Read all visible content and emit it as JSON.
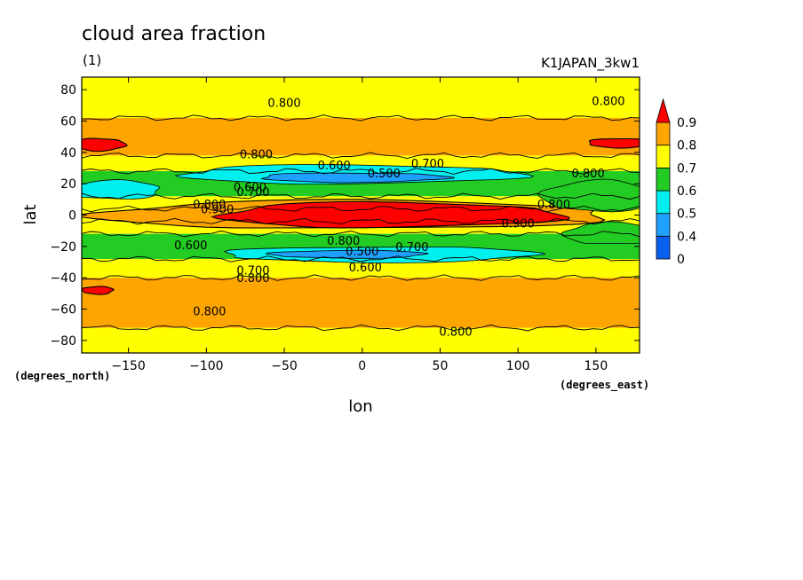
{
  "chart_data": {
    "type": "heatmap",
    "title": "cloud area fraction",
    "subtitle": "(1)",
    "model": "K1JAPAN_3kw1",
    "xlabel": "lon",
    "ylabel": "lat",
    "x_unit": "(degrees_east)",
    "y_unit": "(degrees_north)",
    "xlim": [
      -180,
      178
    ],
    "ylim": [
      -88,
      88
    ],
    "x_ticks": [
      -150,
      -100,
      -50,
      0,
      50,
      100,
      150
    ],
    "y_ticks": [
      -80,
      -60,
      -40,
      -20,
      0,
      20,
      40,
      60,
      80
    ],
    "colorbar": {
      "levels": [
        0,
        0.4,
        0.5,
        0.6,
        0.7,
        0.8,
        0.9
      ],
      "labels": [
        "0",
        "0.4",
        "0.5",
        "0.6",
        "0.7",
        "0.8",
        "0.9"
      ],
      "colors": [
        "#0a5ff0",
        "#1fa0ff",
        "#00f0f0",
        "#22cc22",
        "#ffff00",
        "#ffa500",
        "#ff0000"
      ]
    },
    "bands": [
      {
        "lat_min": 62,
        "lat_max": 88,
        "level": 0.7
      },
      {
        "lat_min": 38,
        "lat_max": 62,
        "level": 0.8
      },
      {
        "lat_min": 28,
        "lat_max": 38,
        "level": 0.7
      },
      {
        "lat_min": 12,
        "lat_max": 28,
        "level": 0.6
      },
      {
        "lat_min": 4,
        "lat_max": 12,
        "level": 0.7
      },
      {
        "lat_min": -4,
        "lat_max": 4,
        "level": 0.7
      },
      {
        "lat_min": -12,
        "lat_max": -4,
        "level": 0.7
      },
      {
        "lat_min": -28,
        "lat_max": -12,
        "level": 0.6
      },
      {
        "lat_min": -40,
        "lat_max": -28,
        "level": 0.7
      },
      {
        "lat_min": -72,
        "lat_max": -40,
        "level": 0.8
      },
      {
        "lat_min": -88,
        "lat_max": -72,
        "level": 0.7
      }
    ],
    "regions": [
      {
        "lon_c": -5,
        "lat_c": 26,
        "rlon": 110,
        "rlat": 6,
        "level": 0.5
      },
      {
        "lon_c": -5,
        "lat_c": 24,
        "rlon": 60,
        "rlat": 3,
        "level": 0.4
      },
      {
        "lon_c": 10,
        "lat_c": -25,
        "rlon": 100,
        "rlat": 5,
        "level": 0.5
      },
      {
        "lon_c": -10,
        "lat_c": -25,
        "rlon": 50,
        "rlat": 2.5,
        "level": 0.4
      },
      {
        "lon_c": -160,
        "lat_c": 16,
        "rlon": 30,
        "rlat": 6,
        "level": 0.5
      },
      {
        "lon_c": -5,
        "lat_c": 0,
        "rlon": 165,
        "rlat": 9,
        "level": 0.8
      },
      {
        "lon_c": 20,
        "lat_c": 0,
        "rlon": 110,
        "rlat": 8,
        "level": 0.9
      },
      {
        "lon_c": -168,
        "lat_c": 45,
        "rlon": 16,
        "rlat": 4,
        "level": 0.9
      },
      {
        "lon_c": 165,
        "lat_c": 46,
        "rlon": 20,
        "rlat": 3,
        "level": 0.9
      },
      {
        "lon_c": -170,
        "lat_c": -48,
        "rlon": 10,
        "rlat": 2.5,
        "level": 0.9
      },
      {
        "lon_c": 150,
        "lat_c": 12,
        "rlon": 35,
        "rlat": 10,
        "level": 0.6
      },
      {
        "lon_c": 160,
        "lat_c": -12,
        "rlon": 30,
        "rlat": 7,
        "level": 0.6
      }
    ],
    "contour_labels": [
      {
        "lon": -50,
        "lat": 72,
        "text": "0.800"
      },
      {
        "lon": 158,
        "lat": 73,
        "text": "0.800"
      },
      {
        "lon": -68,
        "lat": 39,
        "text": "0.800"
      },
      {
        "lon": -18,
        "lat": 32,
        "text": "0.600"
      },
      {
        "lon": 14,
        "lat": 27,
        "text": "0.500"
      },
      {
        "lon": 42,
        "lat": 33,
        "text": "0.700"
      },
      {
        "lon": 145,
        "lat": 27,
        "text": "0.800"
      },
      {
        "lon": -72,
        "lat": 18,
        "text": "0.600"
      },
      {
        "lon": -70,
        "lat": 15,
        "text": "0.700"
      },
      {
        "lon": -98,
        "lat": 7,
        "text": "0.800"
      },
      {
        "lon": -93,
        "lat": 4,
        "text": "0.900"
      },
      {
        "lon": 123,
        "lat": 7,
        "text": "0.800"
      },
      {
        "lon": 100,
        "lat": -5,
        "text": "0.900"
      },
      {
        "lon": -110,
        "lat": -19,
        "text": "0.600"
      },
      {
        "lon": -12,
        "lat": -16,
        "text": "0.800"
      },
      {
        "lon": 0,
        "lat": -23,
        "text": "0.500"
      },
      {
        "lon": 32,
        "lat": -20,
        "text": "0.700"
      },
      {
        "lon": -70,
        "lat": -35,
        "text": "0.700"
      },
      {
        "lon": -70,
        "lat": -40,
        "text": "0.800"
      },
      {
        "lon": 2,
        "lat": -33,
        "text": "0.600"
      },
      {
        "lon": -98,
        "lat": -61,
        "text": "0.800"
      },
      {
        "lon": 60,
        "lat": -74,
        "text": "0.800"
      }
    ]
  }
}
